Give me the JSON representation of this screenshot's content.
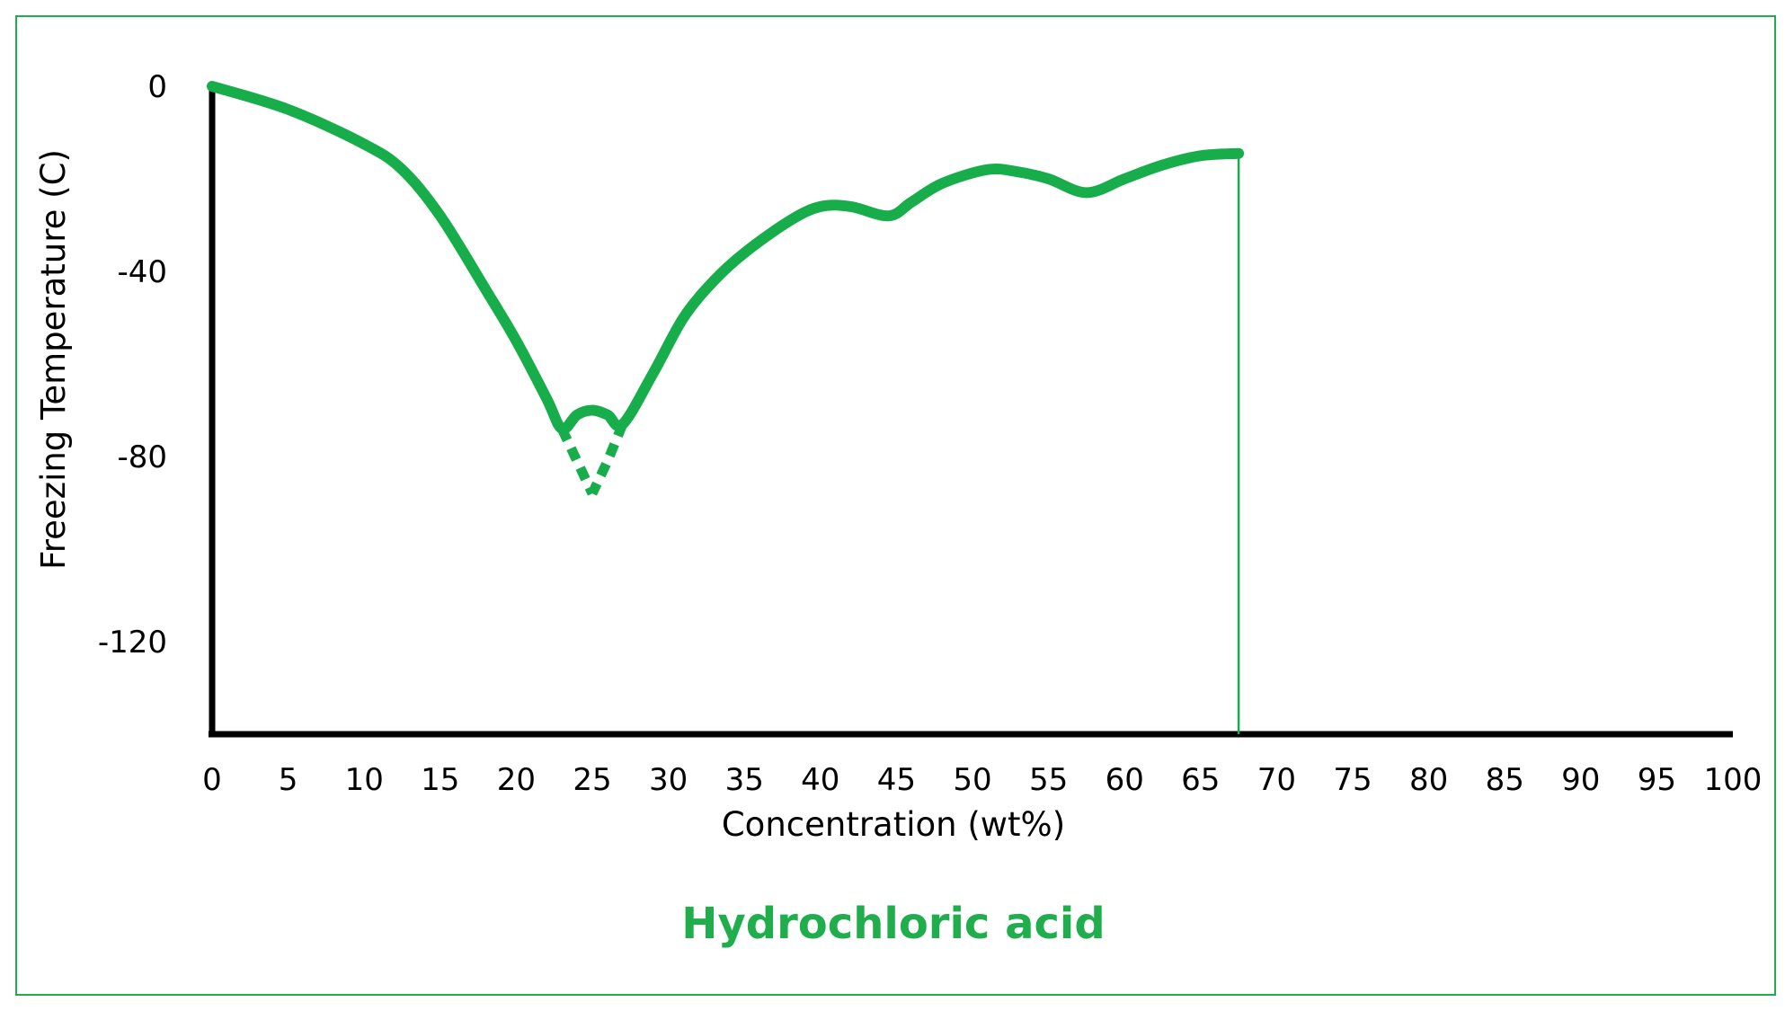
{
  "chart_data": {
    "type": "line",
    "title": "Hydrochloric acid",
    "xlabel": "Concentration (wt%)",
    "ylabel": "Freezing Temperature (C)",
    "xlim": [
      0,
      100
    ],
    "ylim": [
      -140,
      0
    ],
    "x_ticks": [
      "0",
      "5",
      "10",
      "15",
      "20",
      "25",
      "30",
      "35",
      "40",
      "45",
      "50",
      "55",
      "60",
      "65",
      "70",
      "75",
      "80",
      "85",
      "90",
      "95",
      "100"
    ],
    "y_ticks": [
      "0",
      "-40",
      "-80",
      "-120"
    ],
    "x_tick_values": [
      0,
      5,
      10,
      15,
      20,
      25,
      30,
      35,
      40,
      45,
      50,
      55,
      60,
      65,
      70,
      75,
      80,
      85,
      90,
      95,
      100
    ],
    "y_tick_values": [
      0,
      -40,
      -80,
      -120
    ],
    "grid": false,
    "legend": "none",
    "series": [
      {
        "points": [
          [
            0,
            0
          ],
          [
            5,
            -5
          ],
          [
            10,
            -12.5
          ],
          [
            12.5,
            -18
          ],
          [
            15,
            -28
          ],
          [
            18,
            -44
          ],
          [
            20,
            -55
          ],
          [
            22,
            -67.5
          ],
          [
            23,
            -74
          ],
          [
            24,
            -71
          ],
          [
            25,
            -70
          ],
          [
            26,
            -71
          ],
          [
            27,
            -73
          ],
          [
            29,
            -62
          ],
          [
            31,
            -50
          ],
          [
            33,
            -42
          ],
          [
            35,
            -36
          ],
          [
            38,
            -29
          ],
          [
            40,
            -26
          ],
          [
            42,
            -26
          ],
          [
            44.5,
            -28
          ],
          [
            46,
            -25
          ],
          [
            48,
            -21
          ],
          [
            51,
            -18
          ],
          [
            53,
            -18.5
          ],
          [
            55,
            -20
          ],
          [
            57.5,
            -23
          ],
          [
            60,
            -20
          ],
          [
            62.5,
            -17
          ],
          [
            65,
            -15
          ],
          [
            67.5,
            -14.5
          ]
        ]
      },
      {
        "style": "dashed",
        "points": [
          [
            23,
            -74
          ],
          [
            24,
            -81
          ],
          [
            25,
            -88
          ]
        ]
      },
      {
        "style": "dashed",
        "points": [
          [
            27,
            -73
          ],
          [
            26,
            -81
          ],
          [
            25,
            -88
          ]
        ]
      }
    ],
    "vline": {
      "x": 67.5,
      "y_top": -14.5
    },
    "colors": {
      "curve": "#17ad4b",
      "axis": "#000000",
      "frame": "#1fae4b",
      "caption": "#1fae4b"
    }
  }
}
